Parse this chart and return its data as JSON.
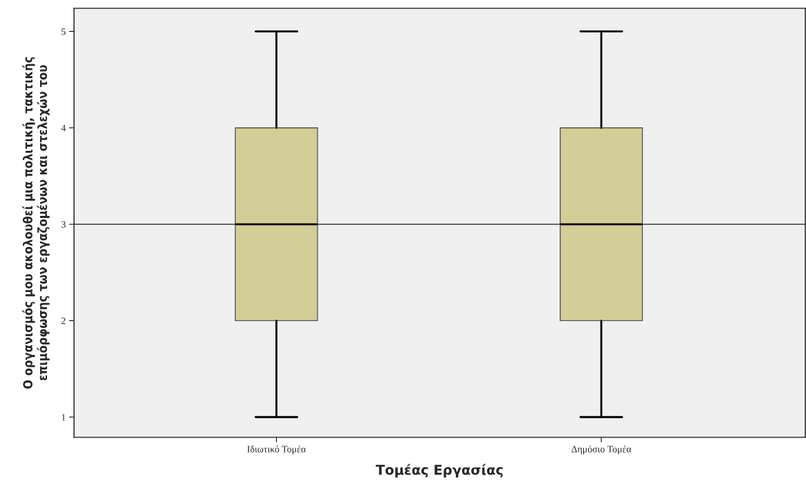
{
  "chart_data": {
    "type": "box",
    "xlabel": "Τομέας Εργασίας",
    "ylabel": "Ο οργανισμός μου ακολουθεί μια πολιτική, τακτικής\nεπιμόρφωσης των εργαζομένων και στελεχών του",
    "categories": [
      "Ιδιωτικό Τομέα",
      "Δημόσιο Τομέα"
    ],
    "boxes": [
      {
        "low": 1,
        "q1": 2,
        "median": 3,
        "q3": 4,
        "high": 5
      },
      {
        "low": 1,
        "q1": 2,
        "median": 3,
        "q3": 4,
        "high": 5
      }
    ],
    "color": "#d3ce97",
    "ylim": [
      0.79,
      5.24
    ],
    "yticks": [
      1,
      2,
      3,
      4,
      5
    ],
    "ref_lines": [
      {
        "axis": "y",
        "value": 3,
        "color": "#555555"
      }
    ],
    "grid": false,
    "legend": false
  }
}
